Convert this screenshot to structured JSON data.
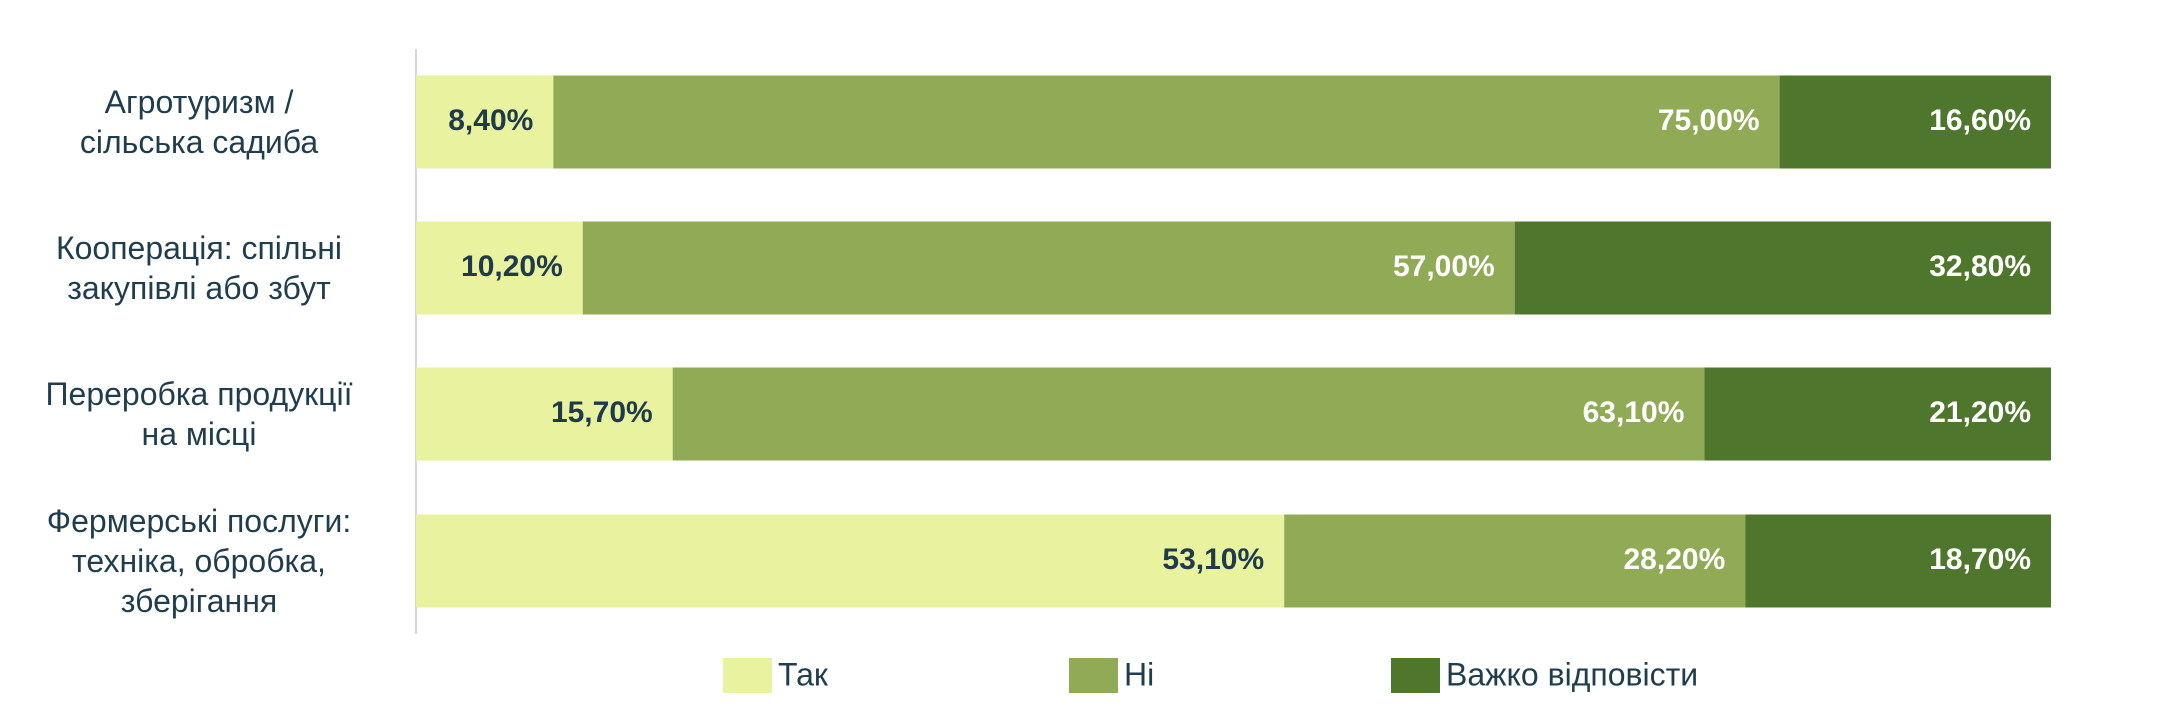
{
  "chart_data": {
    "type": "stacked-bar-horizontal",
    "categories": [
      "Агротуризм /\nсільська садиба",
      "Кооперація: спільні\nзакупівлі або збут",
      "Переробка продукції\nна місці",
      "Фермерські послуги:\nтехніка, обробка,\nзберігання"
    ],
    "xlim": [
      0,
      100
    ],
    "series": [
      {
        "name": "Так",
        "color": "#e9f29f",
        "label_color": "#1f3a4a",
        "values": [
          8.4,
          10.2,
          15.7,
          53.1
        ],
        "value_labels": [
          "8,40%",
          "10,20%",
          "15,70%",
          "53,10%"
        ]
      },
      {
        "name": "Ні",
        "color": "#91aa55",
        "label_color": "#ffffff",
        "values": [
          75.0,
          57.0,
          63.1,
          28.2
        ],
        "value_labels": [
          "75,00%",
          "57,00%",
          "63,10%",
          "28,20%"
        ]
      },
      {
        "name": "Важко відповісти",
        "color": "#4e772d",
        "label_color": "#ffffff",
        "values": [
          16.6,
          32.8,
          21.2,
          18.7
        ],
        "value_labels": [
          "16,60%",
          "32,80%",
          "21,20%",
          "18,70%"
        ]
      }
    ],
    "legend": "bottom"
  }
}
